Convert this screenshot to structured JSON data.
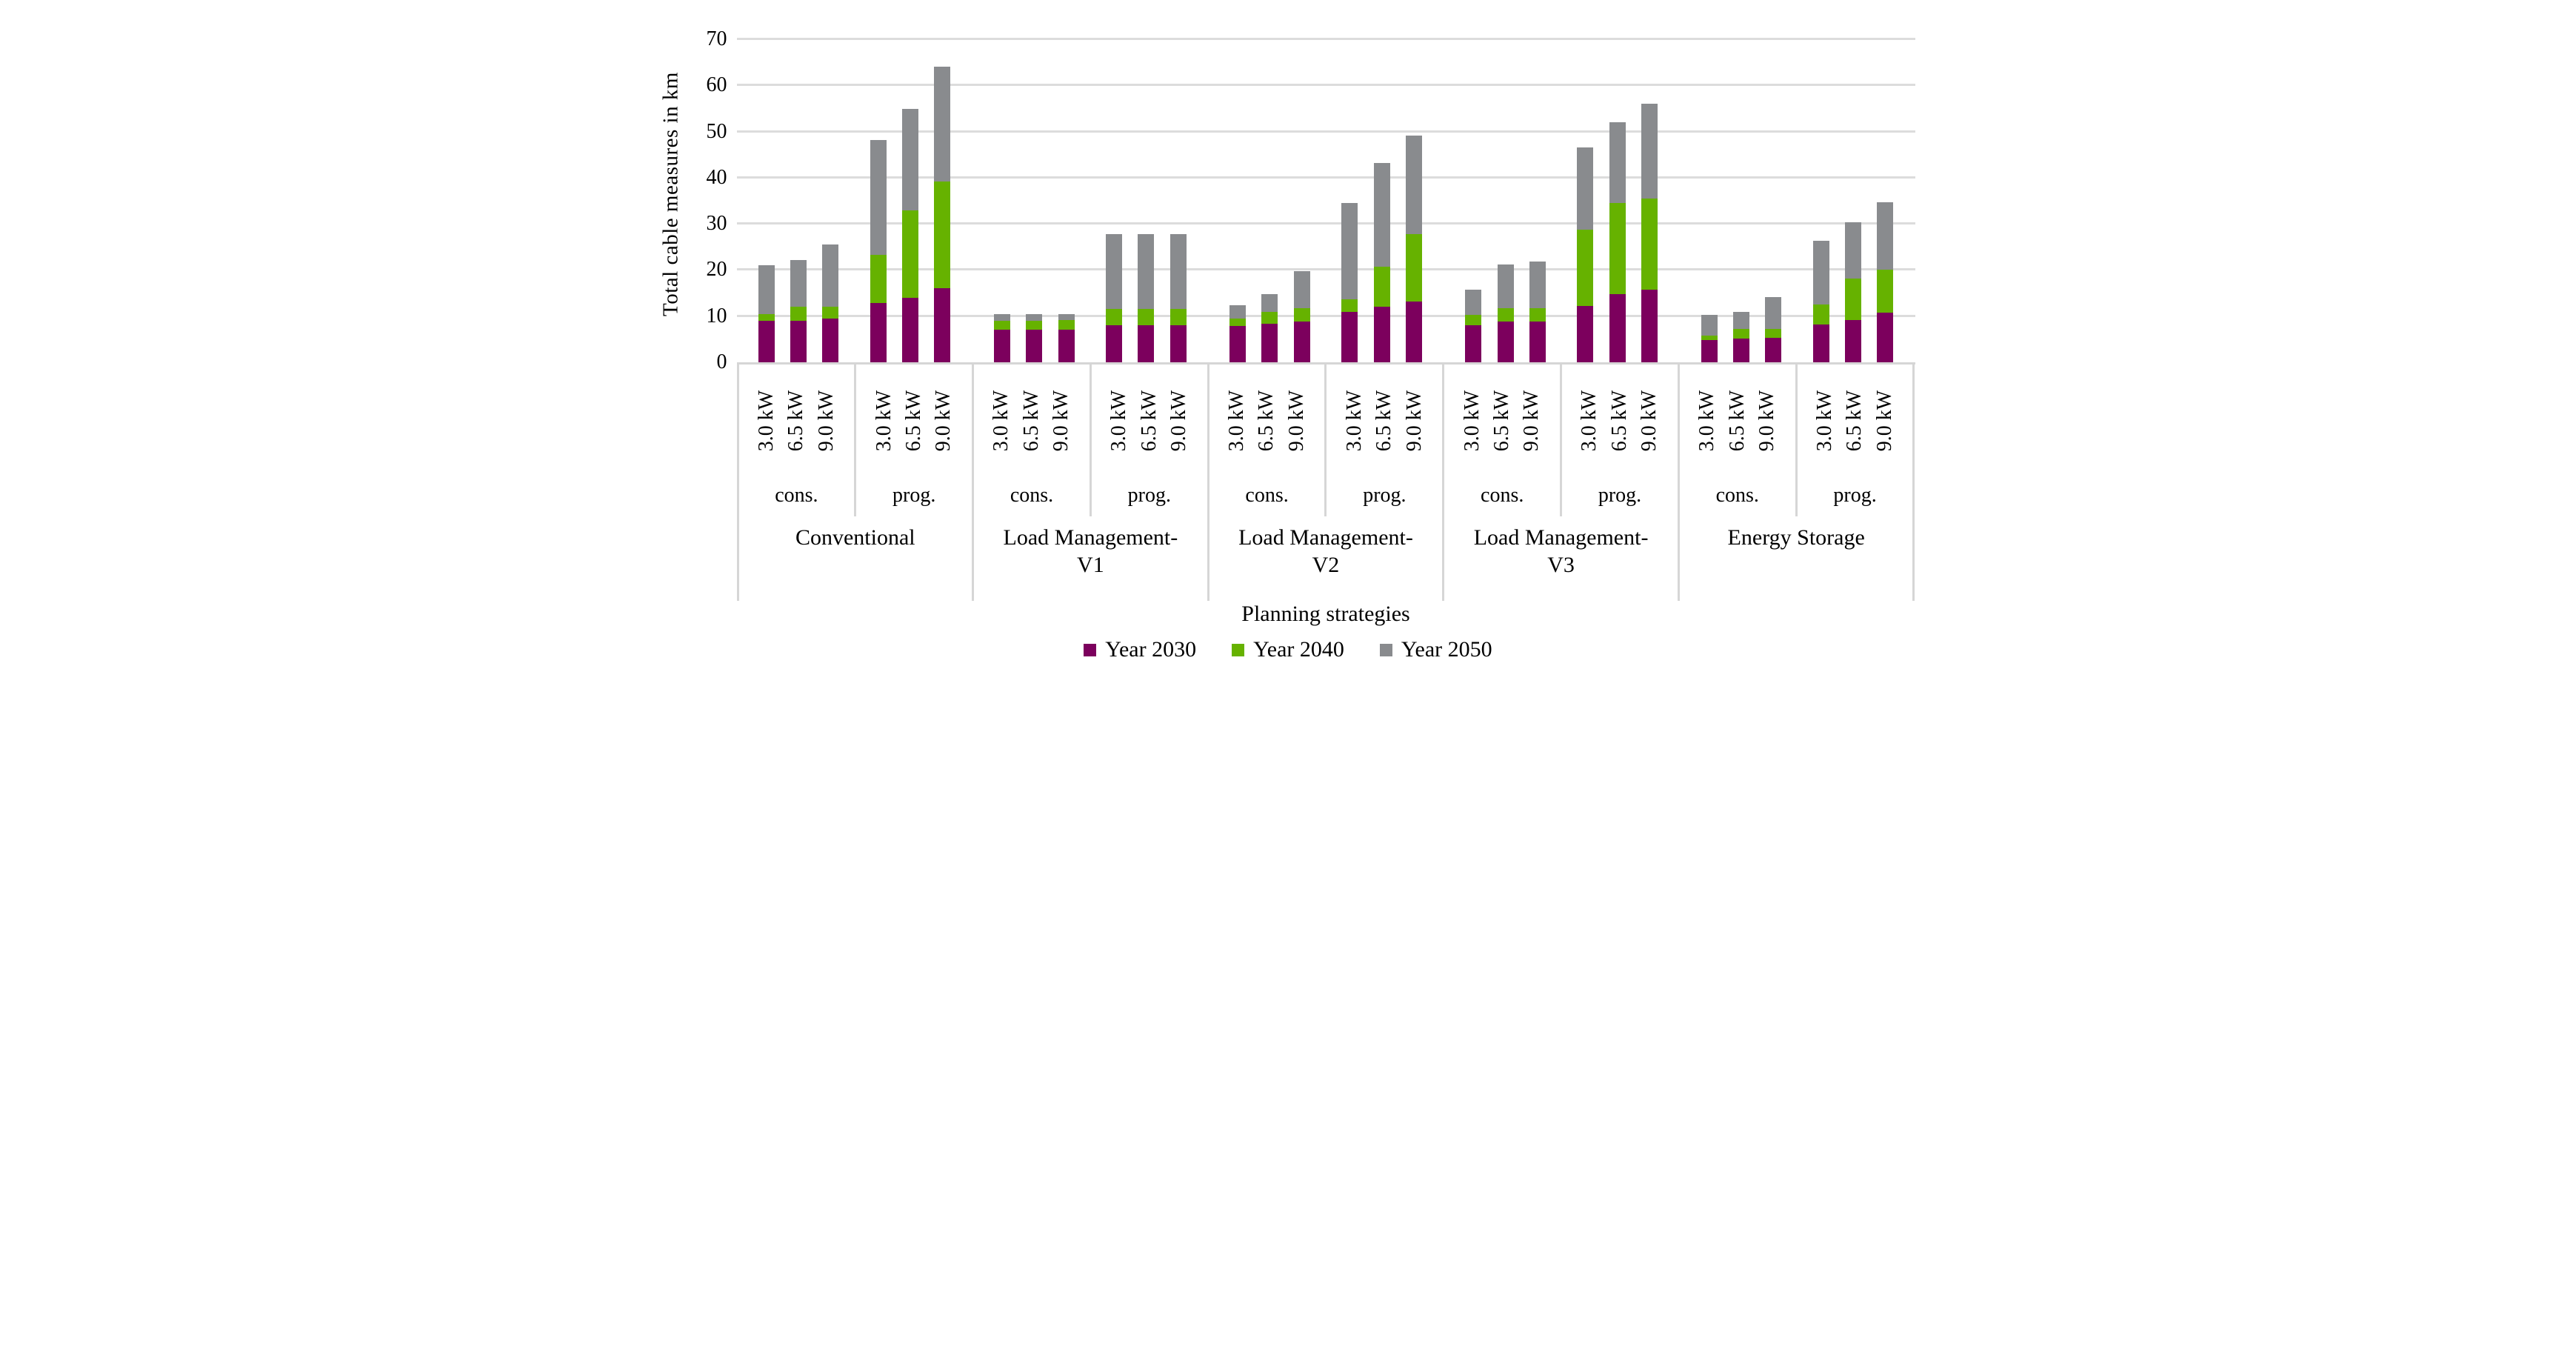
{
  "chart_data": {
    "type": "bar",
    "stacked": true,
    "title": "",
    "ylabel": "Total cable measures in km",
    "xlabel": "Planning strategies",
    "ylim": [
      0,
      70
    ],
    "yticks": [
      0,
      10,
      20,
      30,
      40,
      50,
      60,
      70
    ],
    "grid": "horizontal",
    "legend_position": "bottom",
    "kw_labels": [
      "3.0 kW",
      "6.5 kW",
      "9.0 kW"
    ],
    "subgroup_labels": [
      "cons.",
      "prog."
    ],
    "groups": [
      {
        "label": "Conventional",
        "lines": [
          "Conventional"
        ]
      },
      {
        "label": "Load Management-V1",
        "lines": [
          "Load Management-",
          "V1"
        ]
      },
      {
        "label": "Load Management-V2",
        "lines": [
          "Load Management-",
          "V2"
        ]
      },
      {
        "label": "Load Management-V3",
        "lines": [
          "Load Management-",
          "V3"
        ]
      },
      {
        "label": "Energy Storage",
        "lines": [
          "Energy Storage"
        ]
      }
    ],
    "series": [
      {
        "name": "Year 2030",
        "color": "#7c005d",
        "values": [
          9.0,
          9.0,
          9.5,
          12.8,
          14.0,
          16.1,
          7.0,
          7.0,
          7.1,
          8.0,
          8.0,
          8.0,
          7.9,
          8.3,
          8.9,
          10.9,
          12.1,
          13.1,
          8.0,
          8.9,
          8.9,
          12.2,
          14.7,
          15.7,
          4.8,
          5.2,
          5.3,
          8.2,
          9.2,
          10.7
        ]
      },
      {
        "name": "Year 2040",
        "color": "#66b200",
        "values": [
          1.5,
          3.0,
          2.5,
          10.5,
          18.9,
          23.0,
          2.0,
          2.0,
          2.0,
          3.5,
          3.5,
          3.5,
          1.5,
          2.6,
          2.8,
          2.8,
          8.6,
          14.6,
          2.3,
          2.9,
          2.9,
          16.5,
          19.8,
          19.8,
          1.0,
          2.0,
          2.0,
          4.4,
          8.9,
          9.4
        ]
      },
      {
        "name": "Year 2050",
        "color": "#898b8e",
        "values": [
          10.5,
          10.1,
          13.6,
          24.8,
          22.0,
          24.9,
          1.5,
          1.5,
          1.4,
          16.3,
          16.3,
          16.3,
          2.9,
          3.8,
          8.1,
          20.8,
          22.5,
          21.5,
          5.5,
          9.4,
          10.0,
          17.9,
          17.5,
          20.6,
          4.5,
          3.7,
          6.8,
          13.7,
          12.2,
          14.6
        ]
      }
    ],
    "colors": {
      "gridline": "#dcdcdc",
      "axis_line": "#d6d6d6",
      "text": "#000000",
      "background": "#ffffff"
    }
  }
}
